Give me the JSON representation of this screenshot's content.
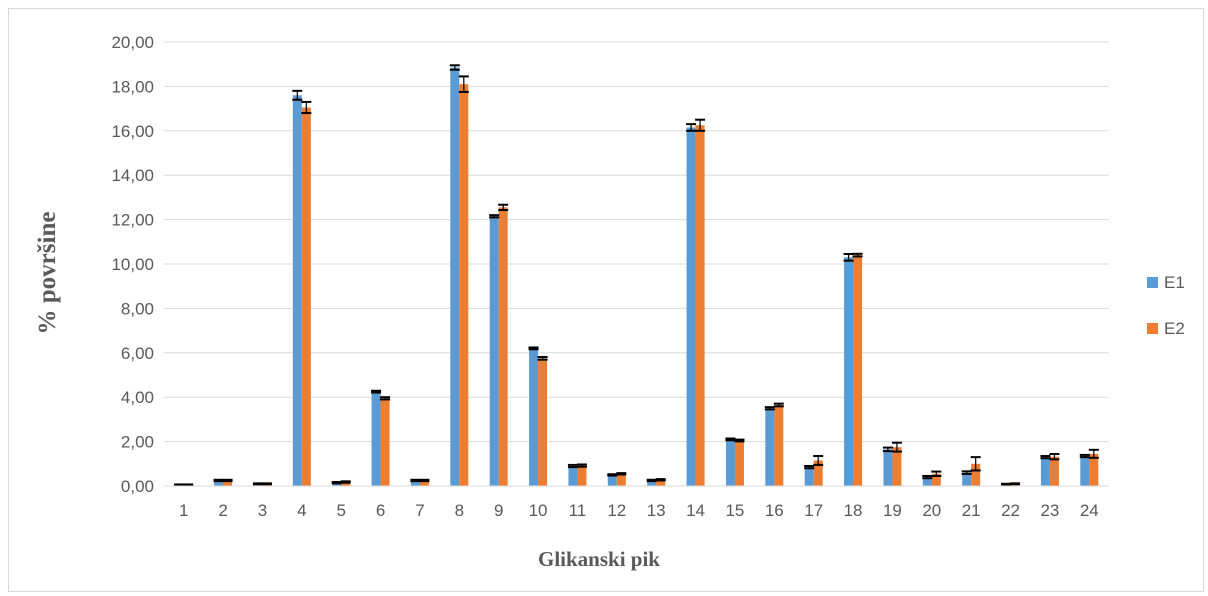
{
  "chart_data": {
    "type": "bar",
    "title": "",
    "xlabel": "Glikanski pik",
    "ylabel": "% površine",
    "ylim": [
      0,
      20
    ],
    "ytick_step": 2,
    "ytick_labels": [
      "0,00",
      "2,00",
      "4,00",
      "6,00",
      "8,00",
      "10,00",
      "12,00",
      "14,00",
      "16,00",
      "18,00",
      "20,00"
    ],
    "grid": true,
    "legend_position": "right",
    "categories": [
      "1",
      "2",
      "3",
      "4",
      "5",
      "6",
      "7",
      "8",
      "9",
      "10",
      "11",
      "12",
      "13",
      "14",
      "15",
      "16",
      "17",
      "18",
      "19",
      "20",
      "21",
      "22",
      "23",
      "24"
    ],
    "series": [
      {
        "name": "E1",
        "color": "#5b9bd5",
        "values": [
          0.05,
          0.25,
          0.1,
          17.6,
          0.15,
          4.25,
          0.25,
          18.85,
          12.15,
          6.2,
          0.9,
          0.5,
          0.25,
          16.15,
          2.1,
          3.5,
          0.85,
          10.3,
          1.65,
          0.4,
          0.6,
          0.08,
          1.3,
          1.35
        ],
        "errors": [
          0.02,
          0.03,
          0.02,
          0.2,
          0.03,
          0.04,
          0.03,
          0.1,
          0.05,
          0.04,
          0.05,
          0.03,
          0.03,
          0.15,
          0.04,
          0.05,
          0.05,
          0.15,
          0.08,
          0.05,
          0.06,
          0.02,
          0.05,
          0.05
        ]
      },
      {
        "name": "E2",
        "color": "#ed7d31",
        "values": [
          0.05,
          0.25,
          0.1,
          17.05,
          0.18,
          3.95,
          0.25,
          18.1,
          12.55,
          5.75,
          0.92,
          0.55,
          0.28,
          16.25,
          2.05,
          3.65,
          1.15,
          10.4,
          1.75,
          0.55,
          1.0,
          0.1,
          1.32,
          1.45
        ],
        "errors": [
          0.02,
          0.03,
          0.02,
          0.25,
          0.03,
          0.05,
          0.03,
          0.35,
          0.12,
          0.06,
          0.05,
          0.03,
          0.03,
          0.25,
          0.04,
          0.06,
          0.2,
          0.06,
          0.2,
          0.1,
          0.3,
          0.02,
          0.12,
          0.18
        ]
      }
    ]
  }
}
